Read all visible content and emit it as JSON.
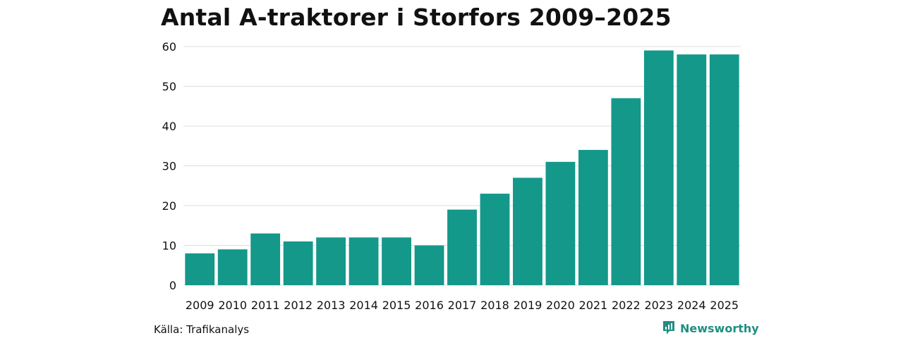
{
  "header": {
    "title": "Antal A-traktorer i Storfors 2009–2025"
  },
  "footer": {
    "source": "Källa: Trafikanalys",
    "brand": "Newsworthy"
  },
  "colors": {
    "bar": "#14988a",
    "grid": "#dddddd",
    "brand": "#1f8f80"
  },
  "chart_data": {
    "type": "bar",
    "title": "Antal A-traktorer i Storfors 2009–2025",
    "xlabel": "",
    "ylabel": "",
    "categories": [
      "2009",
      "2010",
      "2011",
      "2012",
      "2013",
      "2014",
      "2015",
      "2016",
      "2017",
      "2018",
      "2019",
      "2020",
      "2021",
      "2022",
      "2023",
      "2024",
      "2025"
    ],
    "values": [
      8,
      9,
      13,
      11,
      12,
      12,
      12,
      10,
      19,
      23,
      27,
      31,
      34,
      47,
      59,
      58,
      58
    ],
    "ylim": [
      0,
      60
    ],
    "yticks": [
      0,
      10,
      20,
      30,
      40,
      50,
      60
    ],
    "grid": true
  }
}
